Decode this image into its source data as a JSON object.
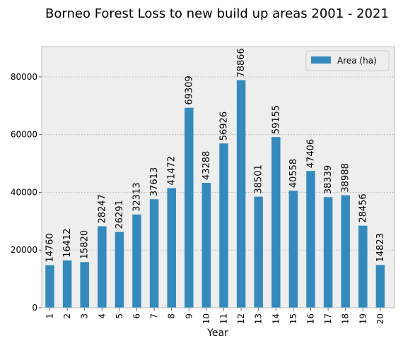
{
  "chart_data": {
    "type": "bar",
    "title": "Borneo Forest Loss to new build up areas 2001 - 2021",
    "xlabel": "Year",
    "ylabel": "",
    "categories": [
      "1",
      "2",
      "3",
      "4",
      "5",
      "6",
      "7",
      "8",
      "9",
      "10",
      "11",
      "12",
      "13",
      "14",
      "15",
      "16",
      "17",
      "18",
      "19",
      "20"
    ],
    "series": [
      {
        "name": "Area (ha)",
        "values": [
          14760,
          16412,
          15820,
          28247,
          26291,
          32313,
          37613,
          41472,
          69309,
          43288,
          56926,
          78866,
          38501,
          59155,
          40558,
          47406,
          38339,
          38988,
          28456,
          14823
        ]
      }
    ],
    "ylim": [
      0,
      90500
    ],
    "yticks": [
      0,
      20000,
      40000,
      60000,
      80000
    ],
    "grid": true,
    "legend_position": "top-right",
    "bar_color": "#348abd",
    "axes_background": "#eeeeee",
    "grid_color": "#b2b2b2"
  }
}
